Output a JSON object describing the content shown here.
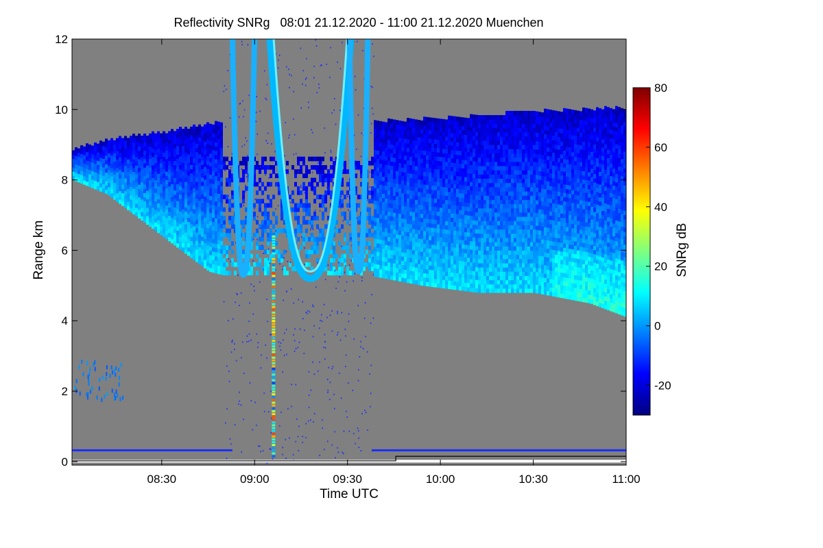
{
  "chart_data": {
    "type": "heatmap",
    "title": "Reflectivity SNRg   08:01 21.12.2020 - 11:00 21.12.2020 Muenchen",
    "xlabel": "Time UTC",
    "ylabel": "Range km",
    "xlim_hours": [
      8.017,
      11.0
    ],
    "ylim_km": [
      -0.1,
      12.0
    ],
    "x_ticks": [
      {
        "value": 8.5,
        "label": "08:30"
      },
      {
        "value": 9.0,
        "label": "09:00"
      },
      {
        "value": 9.5,
        "label": "09:30"
      },
      {
        "value": 10.0,
        "label": "10:00"
      },
      {
        "value": 10.5,
        "label": "10:30"
      },
      {
        "value": 11.0,
        "label": "11:00"
      }
    ],
    "y_ticks": [
      {
        "value": 0,
        "label": "0"
      },
      {
        "value": 2,
        "label": "2"
      },
      {
        "value": 4,
        "label": "4"
      },
      {
        "value": 6,
        "label": "6"
      },
      {
        "value": 8,
        "label": "8"
      },
      {
        "value": 10,
        "label": "10"
      },
      {
        "value": 12,
        "label": "12"
      }
    ],
    "colorbar": {
      "label": "SNRg dB",
      "range": [
        -30,
        80
      ],
      "ticks": [
        {
          "value": -20,
          "label": "-20"
        },
        {
          "value": 0,
          "label": "0"
        },
        {
          "value": 20,
          "label": "20"
        },
        {
          "value": 40,
          "label": "40"
        },
        {
          "value": 60,
          "label": "60"
        },
        {
          "value": 80,
          "label": "80"
        }
      ],
      "colormap": [
        "#00007f",
        "#0000ff",
        "#007fff",
        "#00ffff",
        "#7fff7f",
        "#ffff00",
        "#ff7f00",
        "#ff0000",
        "#7f0000"
      ]
    },
    "background_color": "#808080",
    "grid": false,
    "cloud_base_km": [
      {
        "t": 8.017,
        "km": 8.0
      },
      {
        "t": 8.2,
        "km": 7.6
      },
      {
        "t": 8.4,
        "km": 6.8
      },
      {
        "t": 8.6,
        "km": 6.0
      },
      {
        "t": 8.75,
        "km": 5.4
      },
      {
        "t": 8.9,
        "km": 5.2
      },
      {
        "t": 9.25,
        "km": 5.15
      },
      {
        "t": 9.6,
        "km": 5.3
      },
      {
        "t": 9.9,
        "km": 5.0
      },
      {
        "t": 10.2,
        "km": 4.8
      },
      {
        "t": 10.5,
        "km": 4.8
      },
      {
        "t": 10.8,
        "km": 4.5
      },
      {
        "t": 11.0,
        "km": 4.1
      }
    ],
    "cloud_top_km": [
      {
        "t": 8.017,
        "km": 8.8
      },
      {
        "t": 8.2,
        "km": 9.1
      },
      {
        "t": 8.5,
        "km": 9.3
      },
      {
        "t": 8.8,
        "km": 9.6
      },
      {
        "t": 9.6,
        "km": 9.6
      },
      {
        "t": 10.0,
        "km": 9.7
      },
      {
        "t": 10.5,
        "km": 9.9
      },
      {
        "t": 11.0,
        "km": 10.0
      }
    ]
  }
}
